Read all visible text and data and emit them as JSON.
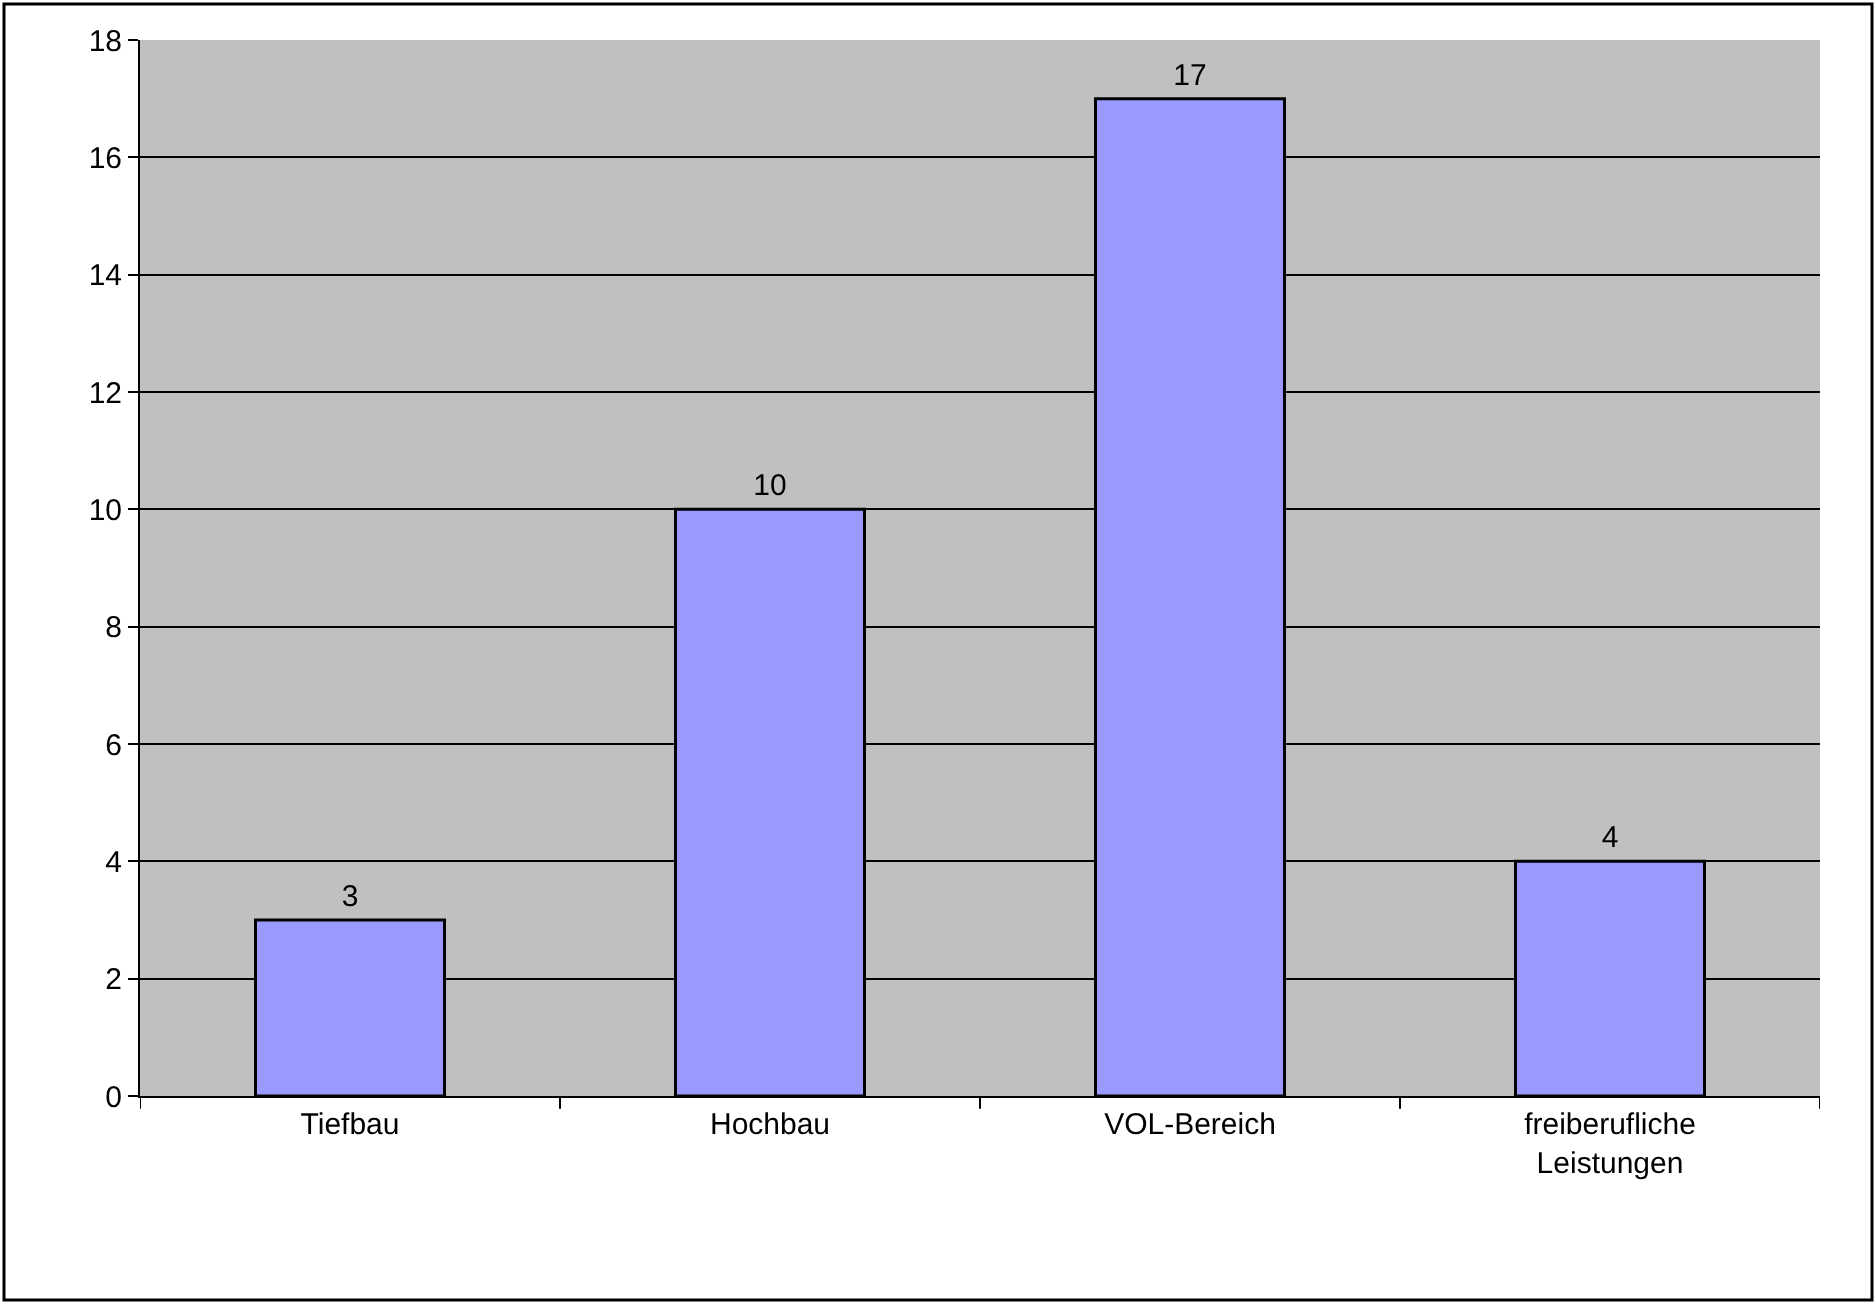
{
  "chart_data": {
    "type": "bar",
    "categories": [
      "Tiefbau",
      "Hochbau",
      "VOL-Bereich",
      "freiberufliche Leistungen"
    ],
    "values": [
      3,
      10,
      17,
      4
    ],
    "color": "#9999ff",
    "ylim": [
      0,
      18
    ],
    "yticks": [
      0,
      2,
      4,
      6,
      8,
      10,
      12,
      14,
      16,
      18
    ],
    "grid": "y",
    "data_labels": true,
    "legend": false
  }
}
